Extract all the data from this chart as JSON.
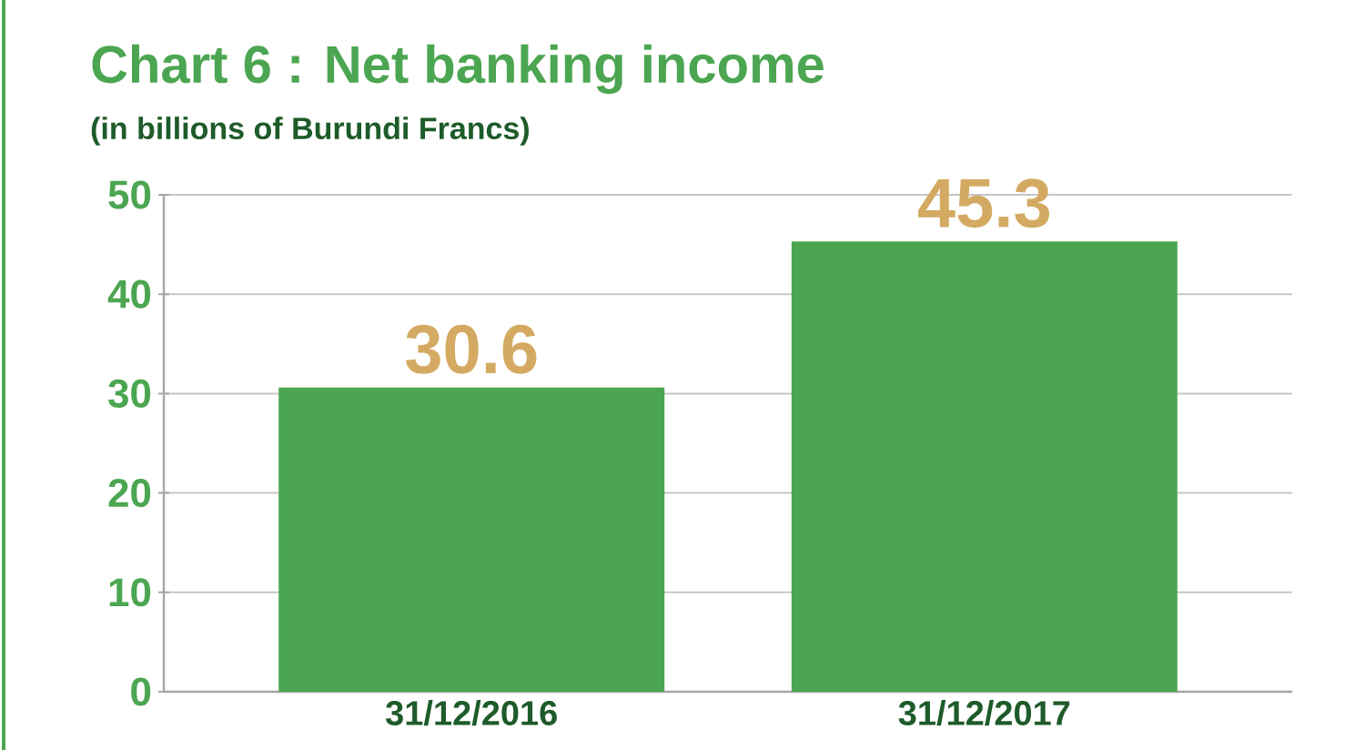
{
  "chart_data": {
    "type": "bar",
    "title": "Chart 6 : Net banking income",
    "subtitle": "(in billions of Burundi Francs)",
    "categories": [
      "31/12/2016",
      "31/12/2017"
    ],
    "values": [
      30.6,
      45.3
    ],
    "color": "#4ca651",
    "ylim": [
      0,
      50
    ],
    "yticks": [
      0,
      10,
      20,
      30,
      40,
      50
    ],
    "grid": "y",
    "data_labels": true
  }
}
